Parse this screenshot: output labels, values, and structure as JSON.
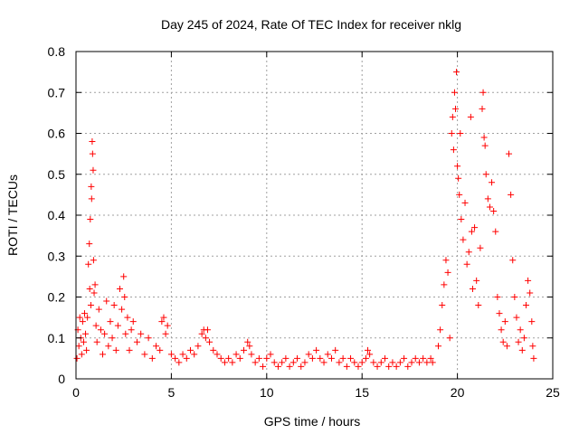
{
  "chart_data": {
    "type": "scatter",
    "title": "Day 245 of 2024, Rate Of TEC Index for receiver nklg",
    "xlabel": "GPS time / hours",
    "ylabel": "ROTI / TECUs",
    "xlim": [
      0,
      25
    ],
    "ylim": [
      0,
      0.8
    ],
    "xticks": [
      "0",
      "5",
      "10",
      "15",
      "20",
      "25"
    ],
    "yticks": [
      "0",
      "0.1",
      "0.2",
      "0.3",
      "0.4",
      "0.5",
      "0.6",
      "0.7",
      "0.8"
    ],
    "grid": true,
    "marker": "+",
    "color": "#ff0000",
    "series": [
      {
        "points": [
          [
            0.05,
            0.05
          ],
          [
            0.1,
            0.12
          ],
          [
            0.15,
            0.08
          ],
          [
            0.2,
            0.15
          ],
          [
            0.25,
            0.1
          ],
          [
            0.3,
            0.06
          ],
          [
            0.35,
            0.14
          ],
          [
            0.4,
            0.09
          ],
          [
            0.45,
            0.16
          ],
          [
            0.5,
            0.11
          ],
          [
            0.55,
            0.07
          ],
          [
            0.6,
            0.15
          ],
          [
            0.65,
            0.28
          ],
          [
            0.7,
            0.33
          ],
          [
            0.72,
            0.22
          ],
          [
            0.75,
            0.39
          ],
          [
            0.78,
            0.18
          ],
          [
            0.8,
            0.47
          ],
          [
            0.82,
            0.44
          ],
          [
            0.85,
            0.58
          ],
          [
            0.87,
            0.55
          ],
          [
            0.9,
            0.51
          ],
          [
            0.92,
            0.29
          ],
          [
            0.95,
            0.21
          ],
          [
            1.0,
            0.23
          ],
          [
            1.05,
            0.13
          ],
          [
            1.1,
            0.09
          ],
          [
            1.2,
            0.17
          ],
          [
            1.3,
            0.12
          ],
          [
            1.4,
            0.06
          ],
          [
            1.5,
            0.11
          ],
          [
            1.6,
            0.19
          ],
          [
            1.7,
            0.08
          ],
          [
            1.8,
            0.14
          ],
          [
            1.9,
            0.1
          ],
          [
            2.0,
            0.18
          ],
          [
            2.1,
            0.07
          ],
          [
            2.2,
            0.13
          ],
          [
            2.3,
            0.22
          ],
          [
            2.4,
            0.17
          ],
          [
            2.5,
            0.25
          ],
          [
            2.55,
            0.2
          ],
          [
            2.6,
            0.11
          ],
          [
            2.7,
            0.15
          ],
          [
            2.8,
            0.07
          ],
          [
            2.9,
            0.12
          ],
          [
            3.0,
            0.14
          ],
          [
            3.2,
            0.09
          ],
          [
            3.4,
            0.11
          ],
          [
            3.6,
            0.06
          ],
          [
            3.8,
            0.1
          ],
          [
            4.0,
            0.05
          ],
          [
            4.2,
            0.08
          ],
          [
            4.4,
            0.07
          ],
          [
            4.5,
            0.14
          ],
          [
            4.6,
            0.15
          ],
          [
            4.7,
            0.11
          ],
          [
            4.8,
            0.13
          ],
          [
            5.0,
            0.06
          ],
          [
            5.2,
            0.05
          ],
          [
            5.4,
            0.04
          ],
          [
            5.6,
            0.06
          ],
          [
            5.8,
            0.05
          ],
          [
            6.0,
            0.07
          ],
          [
            6.2,
            0.06
          ],
          [
            6.4,
            0.08
          ],
          [
            6.6,
            0.11
          ],
          [
            6.7,
            0.12
          ],
          [
            6.8,
            0.1
          ],
          [
            6.9,
            0.12
          ],
          [
            7.0,
            0.09
          ],
          [
            7.2,
            0.07
          ],
          [
            7.4,
            0.06
          ],
          [
            7.6,
            0.05
          ],
          [
            7.8,
            0.04
          ],
          [
            8.0,
            0.05
          ],
          [
            8.2,
            0.04
          ],
          [
            8.4,
            0.06
          ],
          [
            8.6,
            0.05
          ],
          [
            8.8,
            0.07
          ],
          [
            9.0,
            0.09
          ],
          [
            9.1,
            0.08
          ],
          [
            9.2,
            0.06
          ],
          [
            9.4,
            0.04
          ],
          [
            9.6,
            0.05
          ],
          [
            9.8,
            0.03
          ],
          [
            10.0,
            0.05
          ],
          [
            10.2,
            0.06
          ],
          [
            10.4,
            0.04
          ],
          [
            10.6,
            0.03
          ],
          [
            10.8,
            0.04
          ],
          [
            11.0,
            0.05
          ],
          [
            11.2,
            0.03
          ],
          [
            11.4,
            0.04
          ],
          [
            11.6,
            0.05
          ],
          [
            11.8,
            0.03
          ],
          [
            12.0,
            0.04
          ],
          [
            12.2,
            0.06
          ],
          [
            12.4,
            0.05
          ],
          [
            12.6,
            0.07
          ],
          [
            12.8,
            0.05
          ],
          [
            13.0,
            0.04
          ],
          [
            13.2,
            0.06
          ],
          [
            13.4,
            0.05
          ],
          [
            13.6,
            0.07
          ],
          [
            13.8,
            0.04
          ],
          [
            14.0,
            0.05
          ],
          [
            14.2,
            0.03
          ],
          [
            14.4,
            0.05
          ],
          [
            14.6,
            0.04
          ],
          [
            14.8,
            0.03
          ],
          [
            15.0,
            0.04
          ],
          [
            15.2,
            0.05
          ],
          [
            15.3,
            0.07
          ],
          [
            15.4,
            0.06
          ],
          [
            15.6,
            0.04
          ],
          [
            15.8,
            0.03
          ],
          [
            16.0,
            0.04
          ],
          [
            16.2,
            0.05
          ],
          [
            16.4,
            0.03
          ],
          [
            16.6,
            0.04
          ],
          [
            16.8,
            0.03
          ],
          [
            17.0,
            0.04
          ],
          [
            17.2,
            0.05
          ],
          [
            17.4,
            0.03
          ],
          [
            17.6,
            0.04
          ],
          [
            17.8,
            0.05
          ],
          [
            18.0,
            0.04
          ],
          [
            18.2,
            0.05
          ],
          [
            18.4,
            0.04
          ],
          [
            18.6,
            0.05
          ],
          [
            18.7,
            0.04
          ],
          [
            19.0,
            0.08
          ],
          [
            19.1,
            0.12
          ],
          [
            19.2,
            0.18
          ],
          [
            19.3,
            0.23
          ],
          [
            19.4,
            0.29
          ],
          [
            19.5,
            0.26
          ],
          [
            19.6,
            0.1
          ],
          [
            19.7,
            0.6
          ],
          [
            19.75,
            0.64
          ],
          [
            19.8,
            0.56
          ],
          [
            19.85,
            0.7
          ],
          [
            19.9,
            0.66
          ],
          [
            19.95,
            0.75
          ],
          [
            20.0,
            0.52
          ],
          [
            20.05,
            0.49
          ],
          [
            20.1,
            0.45
          ],
          [
            20.15,
            0.6
          ],
          [
            20.2,
            0.39
          ],
          [
            20.3,
            0.34
          ],
          [
            20.4,
            0.43
          ],
          [
            20.5,
            0.28
          ],
          [
            20.6,
            0.31
          ],
          [
            20.7,
            0.64
          ],
          [
            20.75,
            0.36
          ],
          [
            20.8,
            0.22
          ],
          [
            20.9,
            0.37
          ],
          [
            21.0,
            0.24
          ],
          [
            21.1,
            0.18
          ],
          [
            21.2,
            0.32
          ],
          [
            21.3,
            0.66
          ],
          [
            21.35,
            0.7
          ],
          [
            21.4,
            0.59
          ],
          [
            21.45,
            0.57
          ],
          [
            21.5,
            0.5
          ],
          [
            21.6,
            0.44
          ],
          [
            21.7,
            0.42
          ],
          [
            21.8,
            0.48
          ],
          [
            21.9,
            0.41
          ],
          [
            22.0,
            0.36
          ],
          [
            22.1,
            0.2
          ],
          [
            22.2,
            0.16
          ],
          [
            22.3,
            0.12
          ],
          [
            22.4,
            0.09
          ],
          [
            22.5,
            0.14
          ],
          [
            22.6,
            0.08
          ],
          [
            22.7,
            0.55
          ],
          [
            22.8,
            0.45
          ],
          [
            22.9,
            0.29
          ],
          [
            23.0,
            0.2
          ],
          [
            23.1,
            0.15
          ],
          [
            23.2,
            0.09
          ],
          [
            23.3,
            0.12
          ],
          [
            23.4,
            0.07
          ],
          [
            23.5,
            0.1
          ],
          [
            23.6,
            0.18
          ],
          [
            23.7,
            0.24
          ],
          [
            23.8,
            0.21
          ],
          [
            23.9,
            0.14
          ],
          [
            23.95,
            0.08
          ],
          [
            24.0,
            0.05
          ]
        ]
      }
    ]
  }
}
